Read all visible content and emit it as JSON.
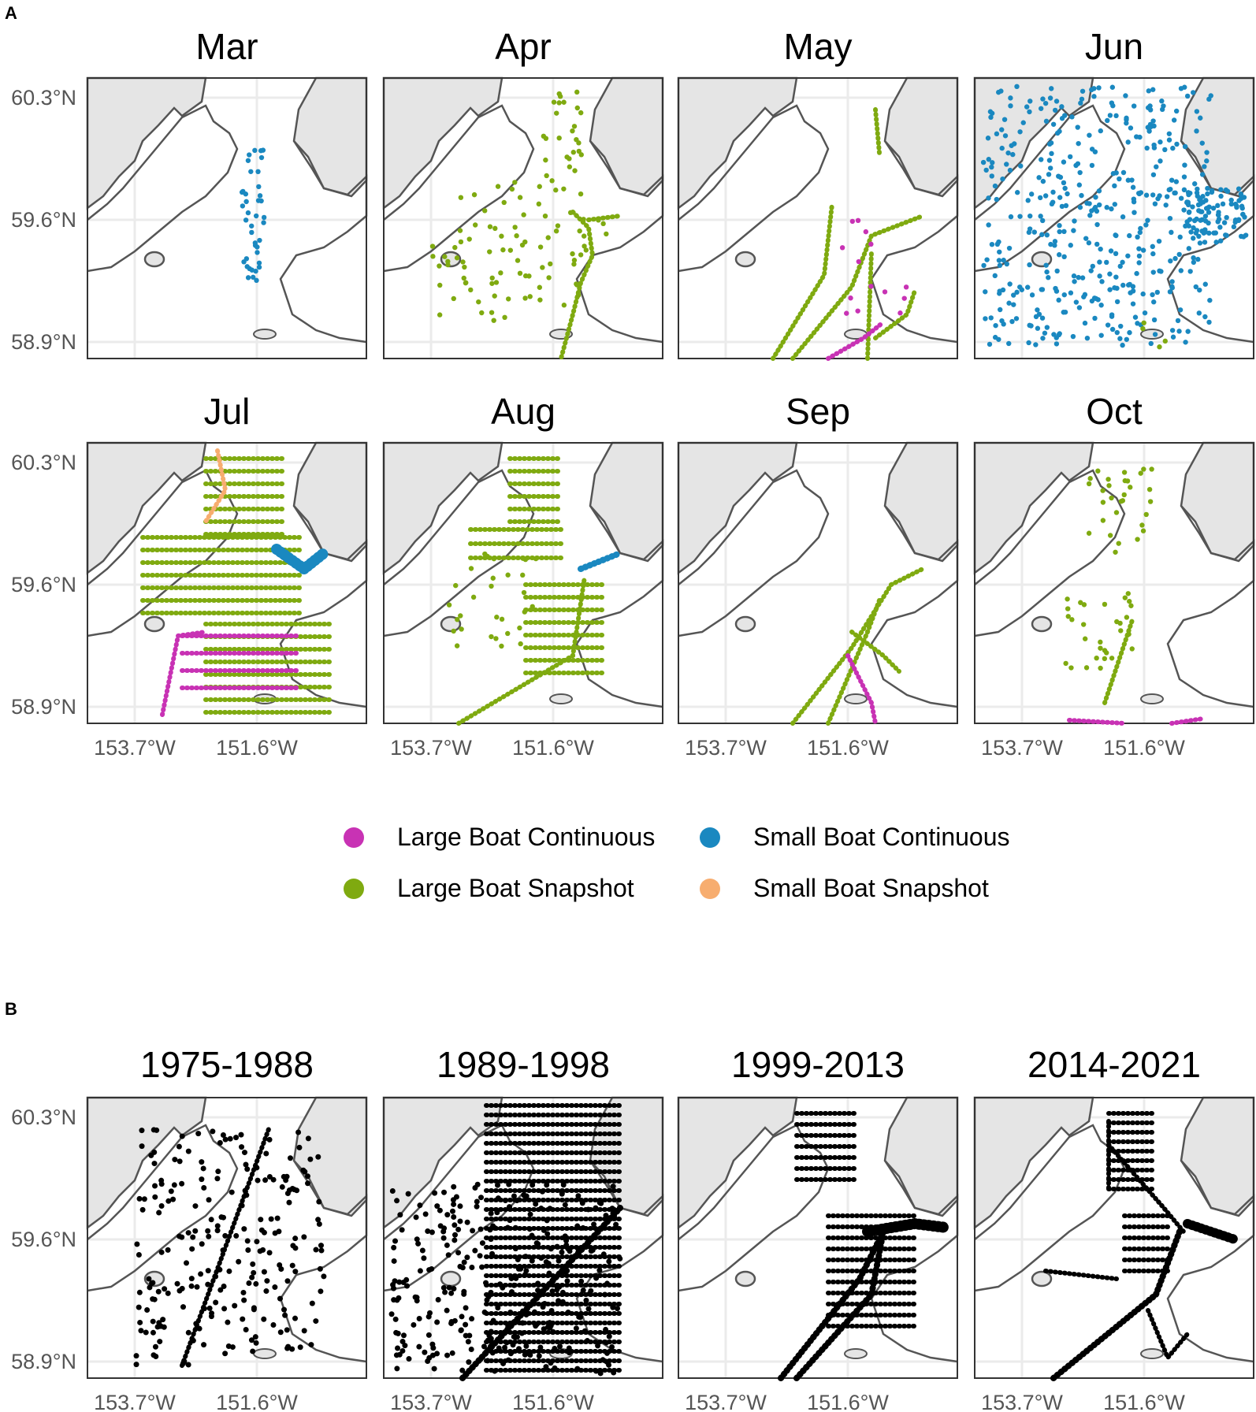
{
  "panels": {
    "a": "A",
    "b": "B"
  },
  "axes": {
    "y_ticks": [
      "60.3°N",
      "59.6°N",
      "58.9°N"
    ],
    "x_ticks": [
      "153.7°W",
      "151.6°W"
    ]
  },
  "colors": {
    "large_continuous": "#C832B4",
    "large_snapshot": "#7FAA10",
    "small_continuous": "#1A88C0",
    "small_snapshot": "#F7AD6F",
    "black": "#000000",
    "land": "#E5E5E5",
    "coast": "#555555",
    "grid": "#EBEBEB"
  },
  "facets_a": [
    {
      "title": "Mar",
      "density": "low"
    },
    {
      "title": "Apr",
      "density": "medium"
    },
    {
      "title": "May",
      "density": "medium"
    },
    {
      "title": "Jun",
      "density": "high"
    },
    {
      "title": "Jul",
      "density": "high"
    },
    {
      "title": "Aug",
      "density": "high"
    },
    {
      "title": "Sep",
      "density": "low"
    },
    {
      "title": "Oct",
      "density": "low"
    }
  ],
  "facets_b": [
    {
      "title": "1975-1988"
    },
    {
      "title": "1989-1998"
    },
    {
      "title": "1999-2013"
    },
    {
      "title": "2014-2021"
    }
  ],
  "legend": [
    {
      "label": "Large Boat Continuous",
      "color": "#C832B4"
    },
    {
      "label": "Small Boat Continuous",
      "color": "#1A88C0"
    },
    {
      "label": "Large Boat Snapshot",
      "color": "#7FAA10"
    },
    {
      "label": "Small Boat Snapshot",
      "color": "#F7AD6F"
    }
  ]
}
